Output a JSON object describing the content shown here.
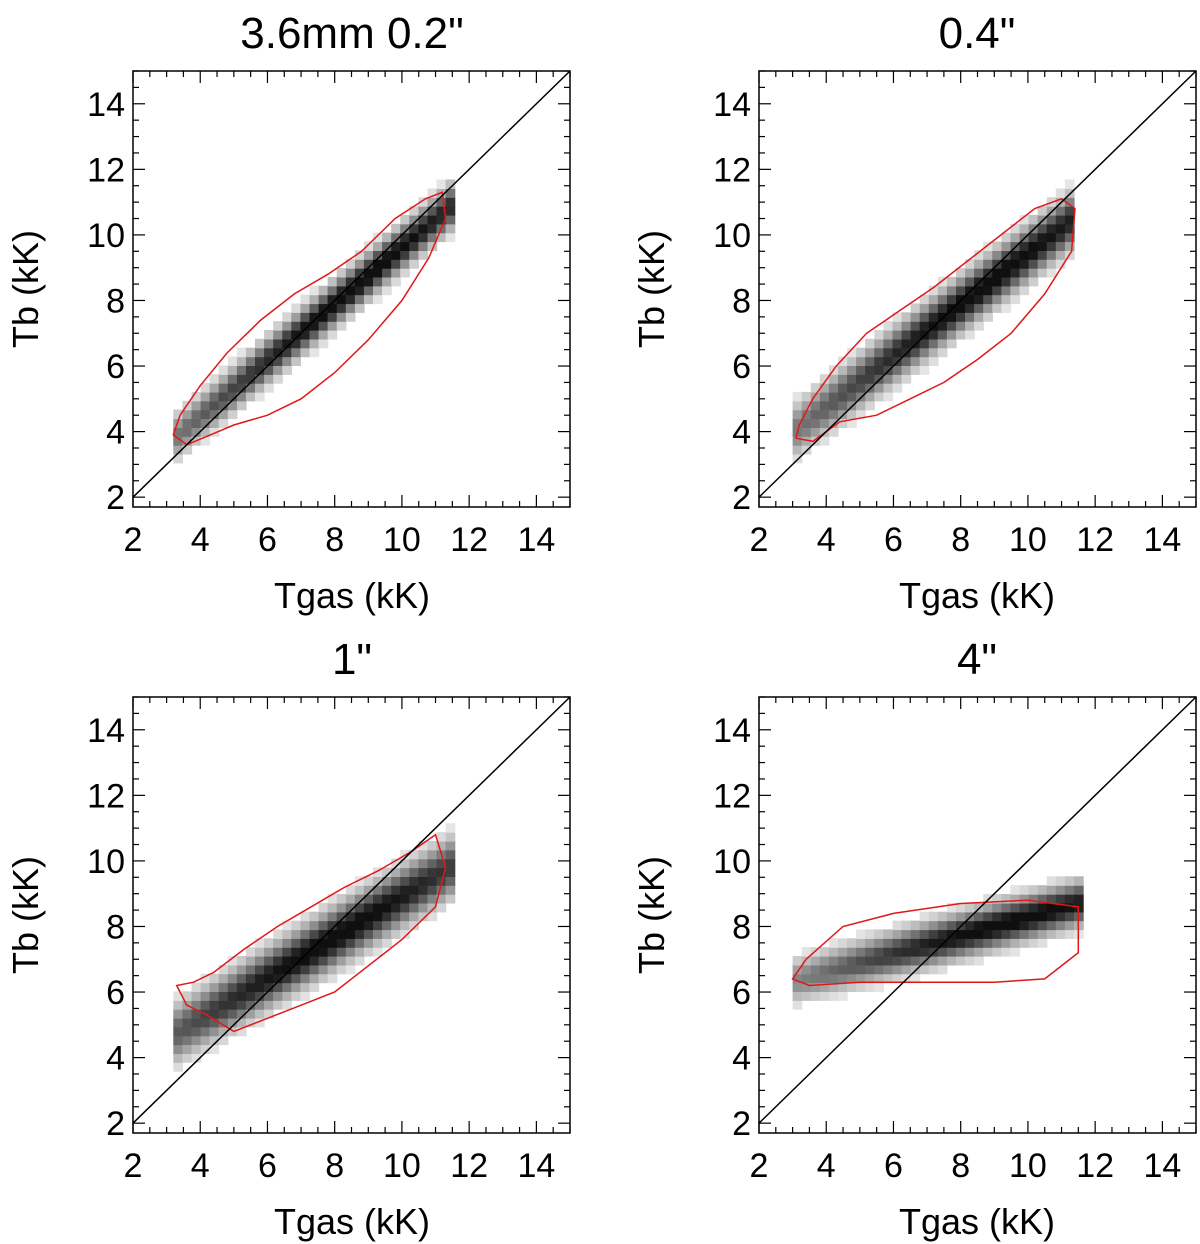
{
  "chart_data": [
    {
      "type": "heatmap",
      "title": "3.6mm 0.2\"",
      "xlabel": "Tgas (kK)",
      "ylabel": "Tb (kK)",
      "xlim": [
        2,
        15
      ],
      "ylim": [
        1.7,
        15
      ],
      "xticks": [
        "2",
        "4",
        "6",
        "8",
        "10",
        "12",
        "14"
      ],
      "yticks": [
        "2",
        "4",
        "6",
        "8",
        "10",
        "12",
        "14"
      ],
      "reference_line": "Tb = Tgas",
      "distribution": {
        "x_range": [
          3.2,
          11.3
        ],
        "peak": [
          8.6,
          8.4
        ],
        "slope": 0.86,
        "spread_kK": 0.45
      },
      "contour_color": "#e01818",
      "contour": [
        [
          3.2,
          3.9
        ],
        [
          3.6,
          3.6
        ],
        [
          4.3,
          3.9
        ],
        [
          5.0,
          4.2
        ],
        [
          6.0,
          4.5
        ],
        [
          7.0,
          5.0
        ],
        [
          8.0,
          5.8
        ],
        [
          9.0,
          6.8
        ],
        [
          10.0,
          8.0
        ],
        [
          10.8,
          9.3
        ],
        [
          11.3,
          10.5
        ],
        [
          11.2,
          11.3
        ],
        [
          10.7,
          11.1
        ],
        [
          9.8,
          10.5
        ],
        [
          8.8,
          9.5
        ],
        [
          7.8,
          8.8
        ],
        [
          6.8,
          8.2
        ],
        [
          5.8,
          7.4
        ],
        [
          4.8,
          6.4
        ],
        [
          4.0,
          5.4
        ],
        [
          3.4,
          4.5
        ]
      ]
    },
    {
      "type": "heatmap",
      "title": "0.4\"",
      "xlabel": "Tgas (kK)",
      "ylabel": "Tb (kK)",
      "xlim": [
        2,
        15
      ],
      "ylim": [
        1.7,
        15
      ],
      "xticks": [
        "2",
        "4",
        "6",
        "8",
        "10",
        "12",
        "14"
      ],
      "yticks": [
        "2",
        "4",
        "6",
        "8",
        "10",
        "12",
        "14"
      ],
      "reference_line": "Tb = Tgas",
      "distribution": {
        "x_range": [
          3.0,
          11.3
        ],
        "peak": [
          8.7,
          8.4
        ],
        "slope": 0.78,
        "spread_kK": 0.55
      },
      "contour_color": "#e01818",
      "contour": [
        [
          3.1,
          3.8
        ],
        [
          3.6,
          3.7
        ],
        [
          4.4,
          4.3
        ],
        [
          5.5,
          4.5
        ],
        [
          6.5,
          5.0
        ],
        [
          7.5,
          5.5
        ],
        [
          8.5,
          6.2
        ],
        [
          9.5,
          7.0
        ],
        [
          10.5,
          8.2
        ],
        [
          11.3,
          9.5
        ],
        [
          11.4,
          10.8
        ],
        [
          11.0,
          11.1
        ],
        [
          10.2,
          10.8
        ],
        [
          9.2,
          10.0
        ],
        [
          8.2,
          9.2
        ],
        [
          7.2,
          8.4
        ],
        [
          6.2,
          7.7
        ],
        [
          5.2,
          7.0
        ],
        [
          4.3,
          6.0
        ],
        [
          3.6,
          5.0
        ],
        [
          3.2,
          4.2
        ]
      ]
    },
    {
      "type": "heatmap",
      "title": "1\"",
      "xlabel": "Tgas (kK)",
      "ylabel": "Tb (kK)",
      "xlim": [
        2,
        15
      ],
      "ylim": [
        1.7,
        15
      ],
      "xticks": [
        "2",
        "4",
        "6",
        "8",
        "10",
        "12",
        "14"
      ],
      "yticks": [
        "2",
        "4",
        "6",
        "8",
        "10",
        "12",
        "14"
      ],
      "reference_line": "Tb = Tgas",
      "distribution": {
        "x_range": [
          3.2,
          11.3
        ],
        "peak": [
          7.8,
          7.5
        ],
        "slope": 0.62,
        "spread_kK": 0.6
      },
      "contour_color": "#e01818",
      "contour": [
        [
          3.3,
          6.2
        ],
        [
          3.6,
          5.6
        ],
        [
          4.2,
          5.3
        ],
        [
          5.0,
          4.8
        ],
        [
          6.0,
          5.2
        ],
        [
          7.0,
          5.6
        ],
        [
          8.0,
          6.0
        ],
        [
          9.0,
          6.8
        ],
        [
          10.0,
          7.6
        ],
        [
          11.0,
          8.6
        ],
        [
          11.3,
          9.8
        ],
        [
          11.0,
          10.8
        ],
        [
          10.3,
          10.3
        ],
        [
          9.3,
          9.7
        ],
        [
          8.3,
          9.2
        ],
        [
          7.3,
          8.6
        ],
        [
          6.3,
          8.0
        ],
        [
          5.3,
          7.3
        ],
        [
          4.4,
          6.6
        ],
        [
          3.8,
          6.3
        ]
      ]
    },
    {
      "type": "heatmap",
      "title": "4\"",
      "xlabel": "Tgas (kK)",
      "ylabel": "Tb (kK)",
      "xlim": [
        2,
        15
      ],
      "ylim": [
        1.7,
        15
      ],
      "xticks": [
        "2",
        "4",
        "6",
        "8",
        "10",
        "12",
        "14"
      ],
      "yticks": [
        "2",
        "4",
        "6",
        "8",
        "10",
        "12",
        "14"
      ],
      "reference_line": "Tb = Tgas",
      "distribution": {
        "x_range": [
          3.0,
          11.5
        ],
        "peak": [
          9.3,
          8.0
        ],
        "slope": 0.28,
        "spread_kK": 0.45
      },
      "contour_color": "#e01818",
      "contour": [
        [
          3.0,
          6.4
        ],
        [
          3.5,
          6.2
        ],
        [
          5.0,
          6.3
        ],
        [
          7.0,
          6.3
        ],
        [
          9.0,
          6.3
        ],
        [
          10.5,
          6.4
        ],
        [
          11.5,
          7.2
        ],
        [
          11.5,
          8.6
        ],
        [
          10.0,
          8.8
        ],
        [
          8.0,
          8.7
        ],
        [
          6.0,
          8.4
        ],
        [
          4.5,
          8.0
        ],
        [
          3.4,
          7.0
        ]
      ]
    }
  ]
}
